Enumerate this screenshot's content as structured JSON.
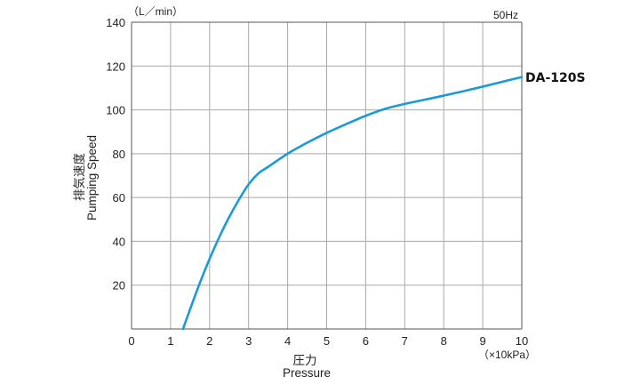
{
  "chart_data": {
    "type": "line",
    "y_unit": "（L／min）",
    "x_unit": "（×10kPa）",
    "condition": "50Hz",
    "xlabel_jp": "圧力",
    "xlabel_en": "Pressure",
    "ylabel_jp": "排気速度",
    "ylabel_en": "Pumping Speed",
    "xlim": [
      0,
      10
    ],
    "ylim": [
      0,
      140
    ],
    "x_ticks": [
      "0",
      "1",
      "2",
      "3",
      "4",
      "5",
      "6",
      "7",
      "8",
      "9",
      "10"
    ],
    "y_ticks": [
      "20",
      "40",
      "60",
      "80",
      "100",
      "120",
      "140"
    ],
    "grid": true,
    "line_color": "#1a9ad9",
    "series": [
      {
        "name": "DA-120S",
        "x": [
          1.32,
          1.5,
          1.75,
          2.0,
          2.25,
          2.5,
          2.75,
          3.0,
          3.25,
          3.5,
          4.0,
          4.5,
          5.0,
          5.5,
          6.0,
          6.5,
          7.0,
          7.5,
          8.0,
          8.5,
          9.0,
          9.5,
          10.0
        ],
        "y": [
          0,
          9,
          21,
          32,
          42,
          51,
          59,
          66,
          71,
          74,
          80,
          85,
          89.5,
          93.5,
          97.3,
          100.5,
          102.7,
          104.6,
          106.5,
          108.5,
          110.6,
          112.8,
          115
        ]
      }
    ]
  }
}
